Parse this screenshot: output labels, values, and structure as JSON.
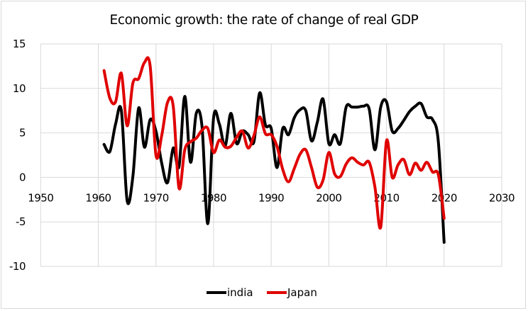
{
  "chart_data": {
    "type": "scatter",
    "render": "smooth-line",
    "title": "Economic growth: the rate of change of real GDP",
    "xlabel": "",
    "ylabel": "",
    "xlim": [
      1950,
      2030
    ],
    "ylim": [
      -10,
      15
    ],
    "x_ticks": [
      1950,
      1960,
      1970,
      1980,
      1990,
      2000,
      2010,
      2020,
      2030
    ],
    "y_ticks": [
      15,
      10,
      5,
      0,
      -5,
      -10
    ],
    "x_tick_labels": [
      "1950",
      "1960",
      "1970",
      "1980",
      "1990",
      "2000",
      "2010",
      "2020",
      "2030"
    ],
    "y_tick_labels": [
      "15",
      "10",
      "5",
      "0",
      "-5",
      "-10"
    ],
    "grid": true,
    "legend_position": "bottom",
    "x": [
      1961,
      1962,
      1963,
      1964,
      1965,
      1966,
      1967,
      1968,
      1969,
      1970,
      1971,
      1972,
      1973,
      1974,
      1975,
      1976,
      1977,
      1978,
      1979,
      1980,
      1981,
      1982,
      1983,
      1984,
      1985,
      1986,
      1987,
      1988,
      1989,
      1990,
      1991,
      1992,
      1993,
      1994,
      1995,
      1996,
      1997,
      1998,
      1999,
      2000,
      2001,
      2002,
      2003,
      2004,
      2005,
      2006,
      2007,
      2008,
      2009,
      2010,
      2011,
      2012,
      2013,
      2014,
      2015,
      2016,
      2017,
      2018,
      2019,
      2020
    ],
    "series": [
      {
        "name": "india",
        "color": "#000000",
        "values": [
          3.7,
          2.9,
          6.0,
          7.5,
          -2.6,
          0.1,
          7.8,
          3.4,
          6.5,
          5.2,
          1.6,
          -0.6,
          3.3,
          1.2,
          9.1,
          1.7,
          7.2,
          5.7,
          -5.2,
          6.7,
          6.0,
          3.5,
          7.2,
          3.8,
          5.2,
          4.8,
          4.0,
          9.5,
          5.9,
          5.5,
          1.1,
          5.5,
          4.8,
          6.7,
          7.6,
          7.5,
          4.1,
          6.2,
          8.8,
          3.8,
          4.8,
          3.8,
          7.9,
          7.9,
          7.9,
          8.0,
          7.7,
          3.1,
          7.9,
          8.5,
          5.2,
          5.5,
          6.4,
          7.4,
          8.0,
          8.3,
          6.8,
          6.5,
          4.0,
          -7.3
        ]
      },
      {
        "name": "Japan",
        "color": "#e00000",
        "values": [
          12.0,
          8.9,
          8.5,
          11.7,
          5.8,
          10.6,
          11.1,
          12.9,
          12.5,
          2.5,
          4.7,
          8.4,
          8.0,
          -1.2,
          3.1,
          4.0,
          4.4,
          5.3,
          5.5,
          2.8,
          4.2,
          3.4,
          3.5,
          4.5,
          5.2,
          3.3,
          4.7,
          6.8,
          4.9,
          4.8,
          3.5,
          0.9,
          -0.5,
          1.0,
          2.6,
          3.1,
          1.1,
          -1.1,
          -0.3,
          2.8,
          0.4,
          0.1,
          1.5,
          2.2,
          1.7,
          1.4,
          1.7,
          -1.1,
          -5.6,
          4.1,
          0.0,
          1.4,
          2.0,
          0.3,
          1.6,
          0.8,
          1.7,
          0.6,
          0.3,
          -4.6
        ]
      }
    ]
  }
}
